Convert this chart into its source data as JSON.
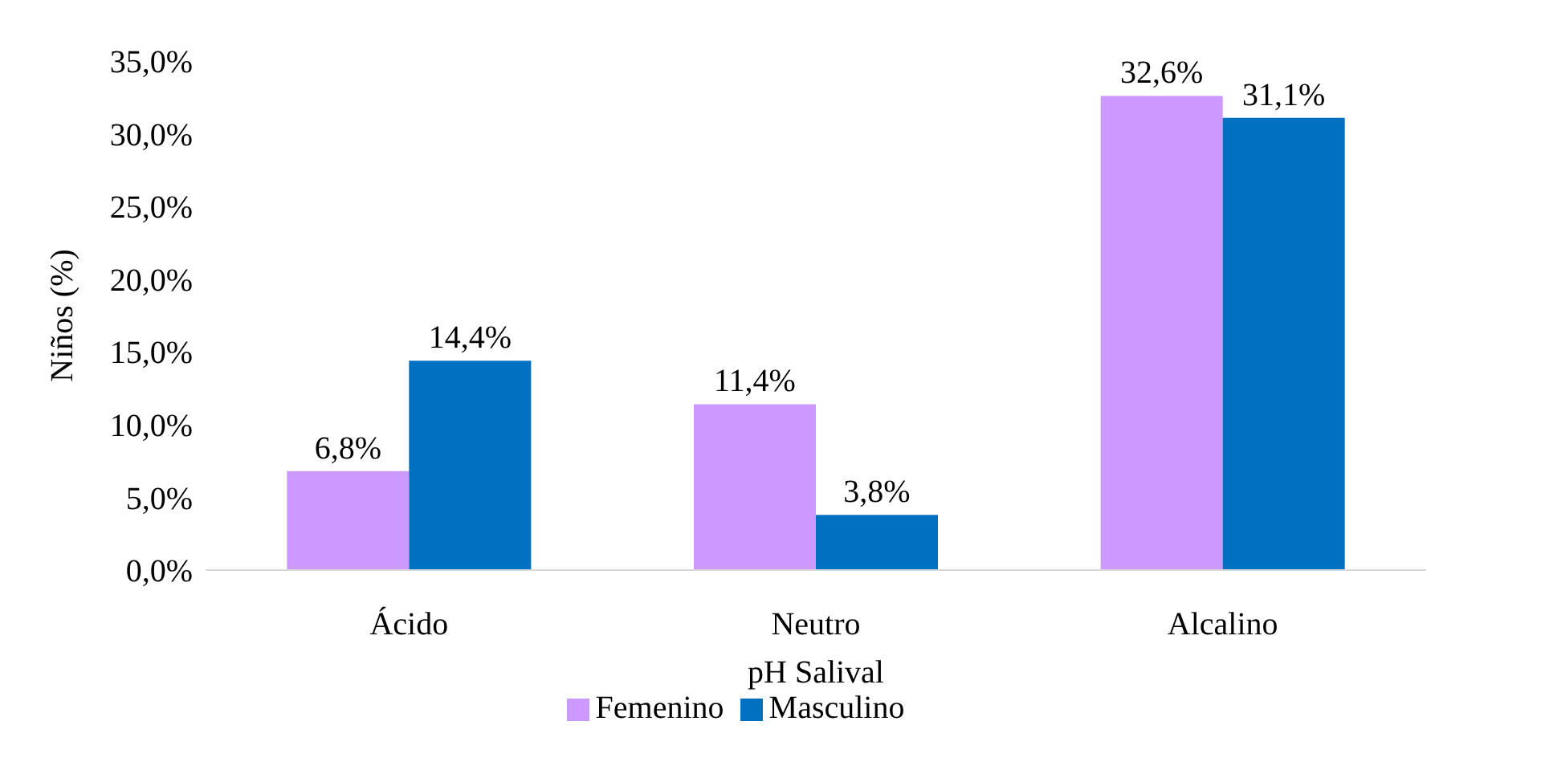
{
  "chart_data": {
    "type": "bar",
    "xlabel": "pH Salival",
    "ylabel": "Niños (%)",
    "categories": [
      "Ácido",
      "Neutro",
      "Alcalino"
    ],
    "series": [
      {
        "name": "Femenino",
        "color": "#cc99ff",
        "values": [
          6.8,
          11.4,
          32.6
        ],
        "value_labels": [
          "6,8%",
          "11,4%",
          "32,6%"
        ]
      },
      {
        "name": "Masculino",
        "color": "#0070c0",
        "values": [
          14.4,
          3.8,
          31.1
        ],
        "value_labels": [
          "14,4%",
          "3,8%",
          "31,1%"
        ]
      }
    ],
    "ylim": [
      0,
      35
    ],
    "yticks": [
      {
        "value": 0,
        "label": "0,0%"
      },
      {
        "value": 5,
        "label": "5,0%"
      },
      {
        "value": 10,
        "label": "10,0%"
      },
      {
        "value": 15,
        "label": "15,0%"
      },
      {
        "value": 20,
        "label": "20,0%"
      },
      {
        "value": 25,
        "label": "25,0%"
      },
      {
        "value": 30,
        "label": "30,0%"
      },
      {
        "value": 35,
        "label": "35,0%"
      }
    ],
    "legend": "bottom"
  }
}
